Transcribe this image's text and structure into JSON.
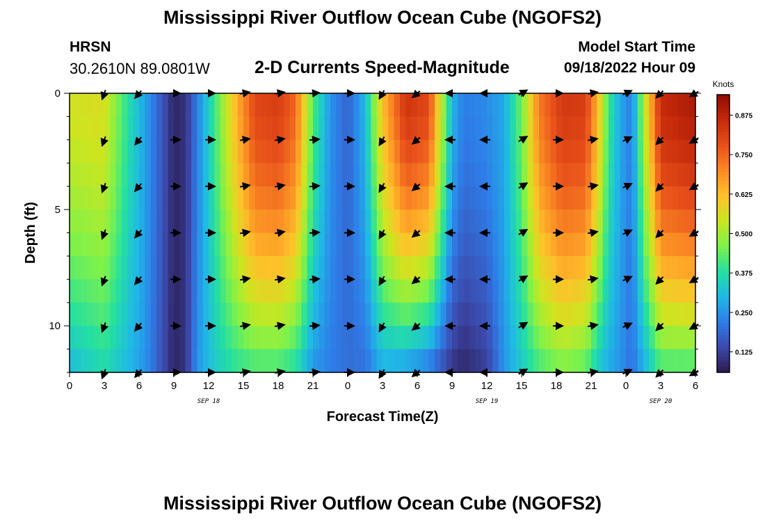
{
  "header": {
    "title": "Mississippi River Outflow Ocean Cube (NGOFS2)",
    "station_name": "HRSN",
    "station_coords": "30.2610N  89.0801W",
    "subtitle": "2-D Currents Speed-Magnitude",
    "model_start_label": "Model Start Time",
    "model_start_value": "09/18/2022 Hour 09"
  },
  "footer": {
    "title": "Mississippi River Outflow Ocean Cube (NGOFS2)"
  },
  "chart_data": {
    "type": "heatmap",
    "xlabel": "Forecast Time(Z)",
    "ylabel": "Depth (ft)",
    "xlim": [
      0,
      54
    ],
    "ylim": [
      0,
      12
    ],
    "y_inverted": true,
    "x_ticks": [
      0,
      3,
      6,
      9,
      12,
      15,
      18,
      21,
      24,
      27,
      30,
      33,
      36,
      39,
      42,
      45,
      48,
      51,
      54
    ],
    "x_tick_labels": [
      "0",
      "3",
      "6",
      "9",
      "12",
      "15",
      "18",
      "21",
      "0",
      "3",
      "6",
      "9",
      "12",
      "15",
      "18",
      "21",
      "0",
      "3",
      "6"
    ],
    "y_ticks": [
      0,
      5,
      10
    ],
    "y_tick_labels": [
      "0",
      "5",
      "10"
    ],
    "date_labels": [
      {
        "x": 12,
        "text": "SEP 18"
      },
      {
        "x": 36,
        "text": "SEP 19"
      },
      {
        "x": 51,
        "text": "SEP 20"
      }
    ],
    "colorbar": {
      "title": "Knots",
      "range": [
        0.06,
        0.94
      ],
      "ticks": [
        0.125,
        0.25,
        0.375,
        0.5,
        0.625,
        0.75,
        0.875
      ],
      "tick_labels": [
        "0.125",
        "0.250",
        "0.375",
        "0.500",
        "0.625",
        "0.750",
        "0.875"
      ],
      "colormap": [
        "#2b1b4e",
        "#3c4aad",
        "#2e7de8",
        "#1fb9e6",
        "#24e0a0",
        "#7ef24a",
        "#cbe620",
        "#ffc12a",
        "#fa8a24",
        "#e8501a",
        "#c52a0b",
        "#8e0b02"
      ]
    },
    "speed_keyframes": [
      {
        "x": 0,
        "surface": 0.55,
        "bottom": 0.3
      },
      {
        "x": 3,
        "surface": 0.56,
        "bottom": 0.36
      },
      {
        "x": 5,
        "surface": 0.38,
        "bottom": 0.3
      },
      {
        "x": 6.5,
        "surface": 0.27,
        "bottom": 0.25
      },
      {
        "x": 8,
        "surface": 0.16,
        "bottom": 0.15
      },
      {
        "x": 9,
        "surface": 0.08,
        "bottom": 0.08
      },
      {
        "x": 10,
        "surface": 0.1,
        "bottom": 0.1
      },
      {
        "x": 11,
        "surface": 0.22,
        "bottom": 0.25
      },
      {
        "x": 12.5,
        "surface": 0.4,
        "bottom": 0.33
      },
      {
        "x": 14.5,
        "surface": 0.65,
        "bottom": 0.38
      },
      {
        "x": 16,
        "surface": 0.8,
        "bottom": 0.4
      },
      {
        "x": 18,
        "surface": 0.82,
        "bottom": 0.4
      },
      {
        "x": 19.5,
        "surface": 0.75,
        "bottom": 0.36
      },
      {
        "x": 21,
        "surface": 0.42,
        "bottom": 0.25
      },
      {
        "x": 22.5,
        "surface": 0.25,
        "bottom": 0.22
      },
      {
        "x": 24,
        "surface": 0.18,
        "bottom": 0.2
      },
      {
        "x": 25.5,
        "surface": 0.3,
        "bottom": 0.2
      },
      {
        "x": 27,
        "surface": 0.62,
        "bottom": 0.28
      },
      {
        "x": 29,
        "surface": 0.84,
        "bottom": 0.25
      },
      {
        "x": 31,
        "surface": 0.8,
        "bottom": 0.2
      },
      {
        "x": 33,
        "surface": 0.3,
        "bottom": 0.1
      },
      {
        "x": 34,
        "surface": 0.22,
        "bottom": 0.08
      },
      {
        "x": 36,
        "surface": 0.24,
        "bottom": 0.12
      },
      {
        "x": 37.5,
        "surface": 0.28,
        "bottom": 0.25
      },
      {
        "x": 39,
        "surface": 0.45,
        "bottom": 0.33
      },
      {
        "x": 40.5,
        "surface": 0.72,
        "bottom": 0.4
      },
      {
        "x": 42.5,
        "surface": 0.83,
        "bottom": 0.45
      },
      {
        "x": 44.5,
        "surface": 0.82,
        "bottom": 0.42
      },
      {
        "x": 45.5,
        "surface": 0.65,
        "bottom": 0.33
      },
      {
        "x": 46.5,
        "surface": 0.4,
        "bottom": 0.28
      },
      {
        "x": 47.5,
        "surface": 0.28,
        "bottom": 0.25
      },
      {
        "x": 48.5,
        "surface": 0.22,
        "bottom": 0.2
      },
      {
        "x": 49.5,
        "surface": 0.5,
        "bottom": 0.28
      },
      {
        "x": 51,
        "surface": 0.86,
        "bottom": 0.4
      },
      {
        "x": 54,
        "surface": 0.9,
        "bottom": 0.4
      }
    ],
    "vector_x": [
      3,
      6,
      9,
      12,
      15,
      18,
      21,
      24,
      27,
      30,
      33,
      36,
      39,
      42,
      45,
      48,
      51,
      54
    ],
    "vector_depths": [
      0,
      2,
      4,
      6,
      8,
      10,
      12
    ],
    "vector_directions_deg": [
      250,
      230,
      0,
      0,
      10,
      10,
      5,
      0,
      240,
      220,
      180,
      180,
      30,
      0,
      10,
      25,
      225,
      210
    ]
  }
}
